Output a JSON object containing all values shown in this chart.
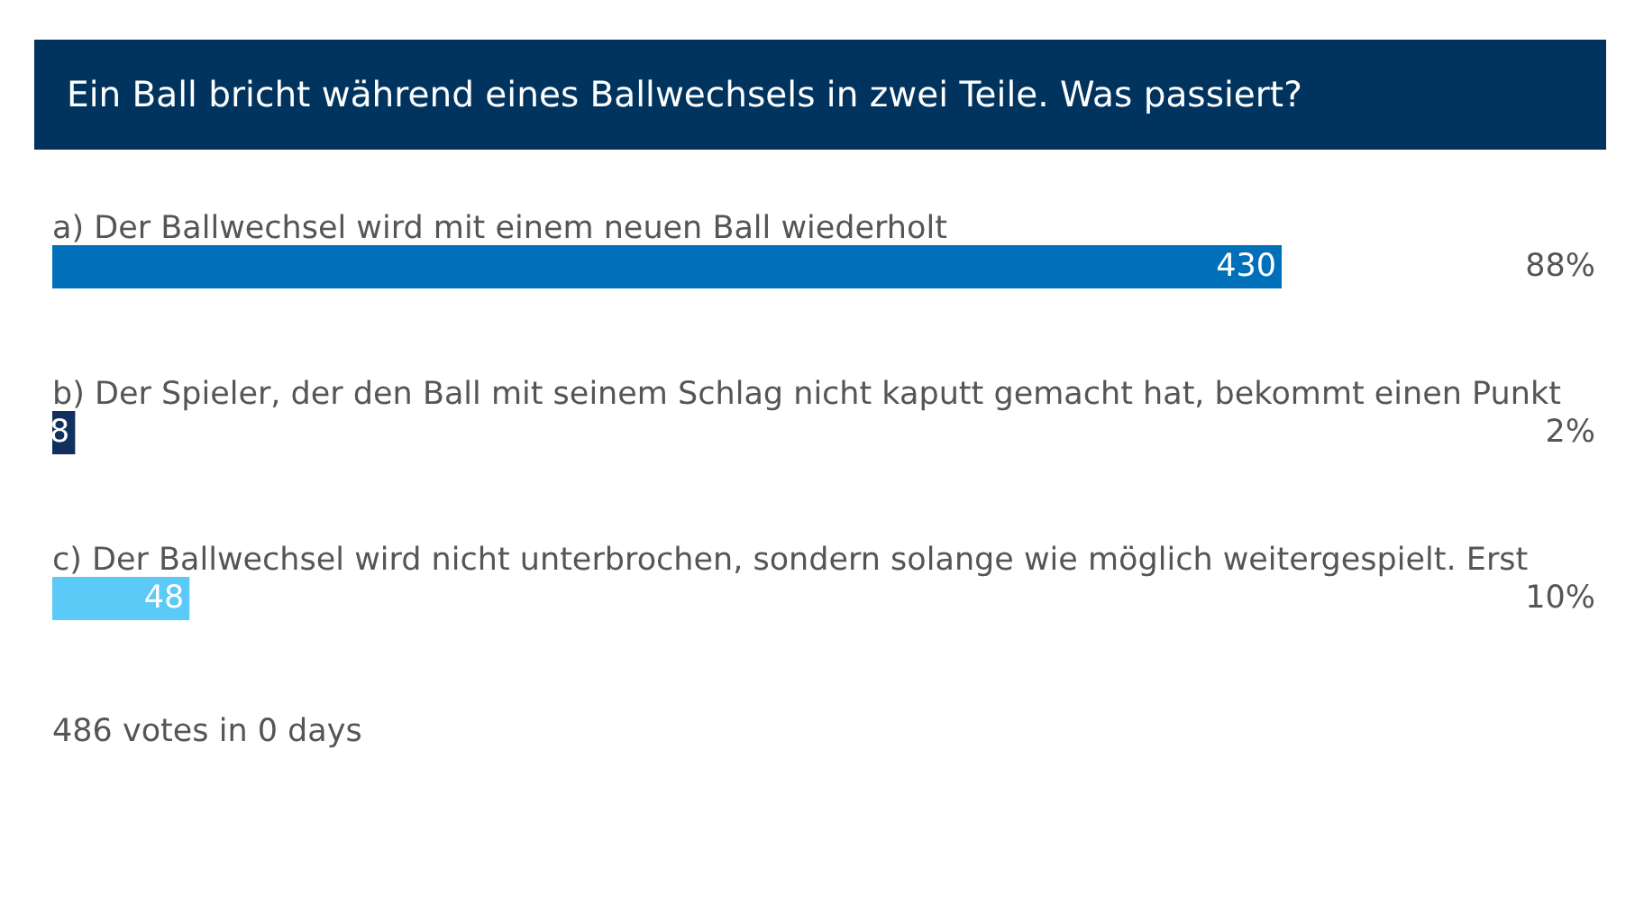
{
  "chart_data": {
    "type": "bar",
    "orientation": "horizontal",
    "title": "Ein Ball bricht während eines Ballwechsels in zwei Teile. Was passiert?",
    "categories": [
      "a) Der Ballwechsel wird mit einem neuen Ball wiederholt",
      "b) Der Spieler, der den Ball mit seinem Schlag nicht kaputt gemacht hat, bekommt einen Punkt",
      "c) Der Ballwechsel wird nicht unterbrochen, sondern solange wie möglich weitergespielt. Erst"
    ],
    "values": [
      430,
      8,
      48
    ],
    "colors": [
      "#0070ba",
      "#12305e",
      "#5ccaf6"
    ],
    "data_labels": true,
    "annotations": [
      "88%",
      "2%",
      "10%",
      "486 votes in 0 days"
    ]
  }
}
